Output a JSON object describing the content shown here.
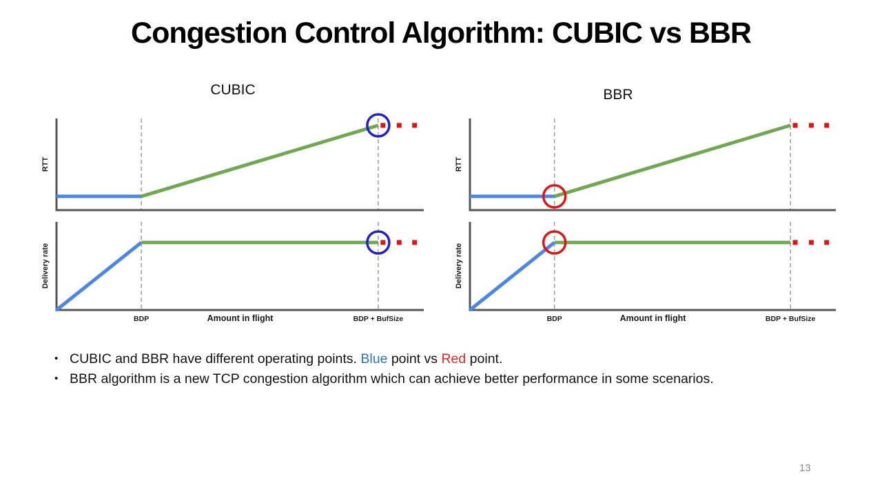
{
  "slide": {
    "title": "Congestion Control Algorithm: CUBIC vs BBR",
    "page_number": "13",
    "bullet_char": "•"
  },
  "groups": [
    {
      "label": "CUBIC"
    },
    {
      "label": "BBR"
    }
  ],
  "colors": {
    "line_blue": "#4A86E8",
    "line_green": "#6EA84F",
    "marker_blue": "#1E22C8",
    "marker_red": "#DE1515",
    "dot_red": "#E01414",
    "axis": "#555555",
    "dash": "#A3A3A3",
    "label_text": "#1a1a1a",
    "text_blue": "#2E75B6",
    "text_red": "#E02424"
  },
  "bullets": [
    {
      "parts": [
        {
          "text": "CUBIC and BBR have different operating points. "
        },
        {
          "text": "Blue",
          "color": "#2E75B6"
        },
        {
          "text": " point vs "
        },
        {
          "text": "Red",
          "color": "#E02424"
        },
        {
          "text": " point."
        }
      ]
    },
    {
      "parts": [
        {
          "text": "BBR algorithm is a new TCP congestion algorithm which can achieve better performance in some scenarios."
        }
      ]
    }
  ],
  "chart_data": [
    {
      "id": "cubic-rtt",
      "type": "line",
      "group": "CUBIC",
      "ylabel": "RTT",
      "xlabel": "",
      "x_range_note": "x normalized 0-1 of axis length; BDP at 0.231, BDP+BufSize at 0.876",
      "segments": [
        {
          "name": "app-limited",
          "color_key": "line_blue",
          "points": [
            [
              0.0,
              0.15
            ],
            [
              0.231,
              0.15
            ]
          ]
        },
        {
          "name": "buffer-filling",
          "color_key": "line_green",
          "points": [
            [
              0.231,
              0.15
            ],
            [
              0.876,
              0.925
            ]
          ]
        }
      ],
      "dashed_verticals": [
        0.231,
        0.876
      ],
      "operating_point": {
        "shape": "circle",
        "color_key": "marker_blue",
        "x": 0.876,
        "y": 0.925
      },
      "overflow_dots": {
        "color_key": "dot_red",
        "y": 0.925,
        "xs": [
          0.889,
          0.933,
          0.975
        ]
      },
      "x_axis_labels": []
    },
    {
      "id": "cubic-delivery",
      "type": "line",
      "group": "CUBIC",
      "ylabel": "Delivery rate",
      "xlabel": "Amount in flight",
      "segments": [
        {
          "name": "ramp-up",
          "color_key": "line_blue",
          "points": [
            [
              0.0,
              0.0
            ],
            [
              0.231,
              0.766
            ]
          ]
        },
        {
          "name": "bandwidth-limited",
          "color_key": "line_green",
          "points": [
            [
              0.231,
              0.766
            ],
            [
              0.876,
              0.766
            ]
          ]
        }
      ],
      "dashed_verticals": [
        0.231,
        0.876
      ],
      "operating_point": {
        "shape": "circle",
        "color_key": "marker_blue",
        "x": 0.876,
        "y": 0.766
      },
      "overflow_dots": {
        "color_key": "dot_red",
        "y": 0.766,
        "xs": [
          0.889,
          0.933,
          0.975
        ]
      },
      "x_axis_labels": [
        {
          "text": "BDP",
          "x": 0.231,
          "emphasis": false
        },
        {
          "text": "Amount in flight",
          "x": 0.5,
          "emphasis": true
        },
        {
          "text": "BDP + BufSize",
          "x": 0.876,
          "emphasis": false
        }
      ]
    },
    {
      "id": "bbr-rtt",
      "type": "line",
      "group": "BBR",
      "ylabel": "RTT",
      "xlabel": "",
      "segments": [
        {
          "name": "app-limited",
          "color_key": "line_blue",
          "points": [
            [
              0.0,
              0.15
            ],
            [
              0.231,
              0.15
            ]
          ]
        },
        {
          "name": "buffer-filling",
          "color_key": "line_green",
          "points": [
            [
              0.231,
              0.15
            ],
            [
              0.876,
              0.925
            ]
          ]
        }
      ],
      "dashed_verticals": [
        0.231,
        0.876
      ],
      "operating_point": {
        "shape": "circle",
        "color_key": "marker_red",
        "x": 0.231,
        "y": 0.15
      },
      "overflow_dots": {
        "color_key": "dot_red",
        "y": 0.925,
        "xs": [
          0.889,
          0.933,
          0.975
        ]
      },
      "x_axis_labels": []
    },
    {
      "id": "bbr-delivery",
      "type": "line",
      "group": "BBR",
      "ylabel": "Delivery rate",
      "xlabel": "Amount in flight",
      "segments": [
        {
          "name": "ramp-up",
          "color_key": "line_blue",
          "points": [
            [
              0.0,
              0.0
            ],
            [
              0.231,
              0.766
            ]
          ]
        },
        {
          "name": "bandwidth-limited",
          "color_key": "line_green",
          "points": [
            [
              0.231,
              0.766
            ],
            [
              0.876,
              0.766
            ]
          ]
        }
      ],
      "dashed_verticals": [
        0.231,
        0.876
      ],
      "operating_point": {
        "shape": "circle",
        "color_key": "marker_red",
        "x": 0.231,
        "y": 0.766
      },
      "overflow_dots": {
        "color_key": "dot_red",
        "y": 0.766,
        "xs": [
          0.889,
          0.933,
          0.975
        ]
      },
      "x_axis_labels": [
        {
          "text": "BDP",
          "x": 0.231,
          "emphasis": false
        },
        {
          "text": "Amount in flight",
          "x": 0.5,
          "emphasis": true
        },
        {
          "text": "BDP + BufSize",
          "x": 0.876,
          "emphasis": false
        }
      ]
    }
  ]
}
